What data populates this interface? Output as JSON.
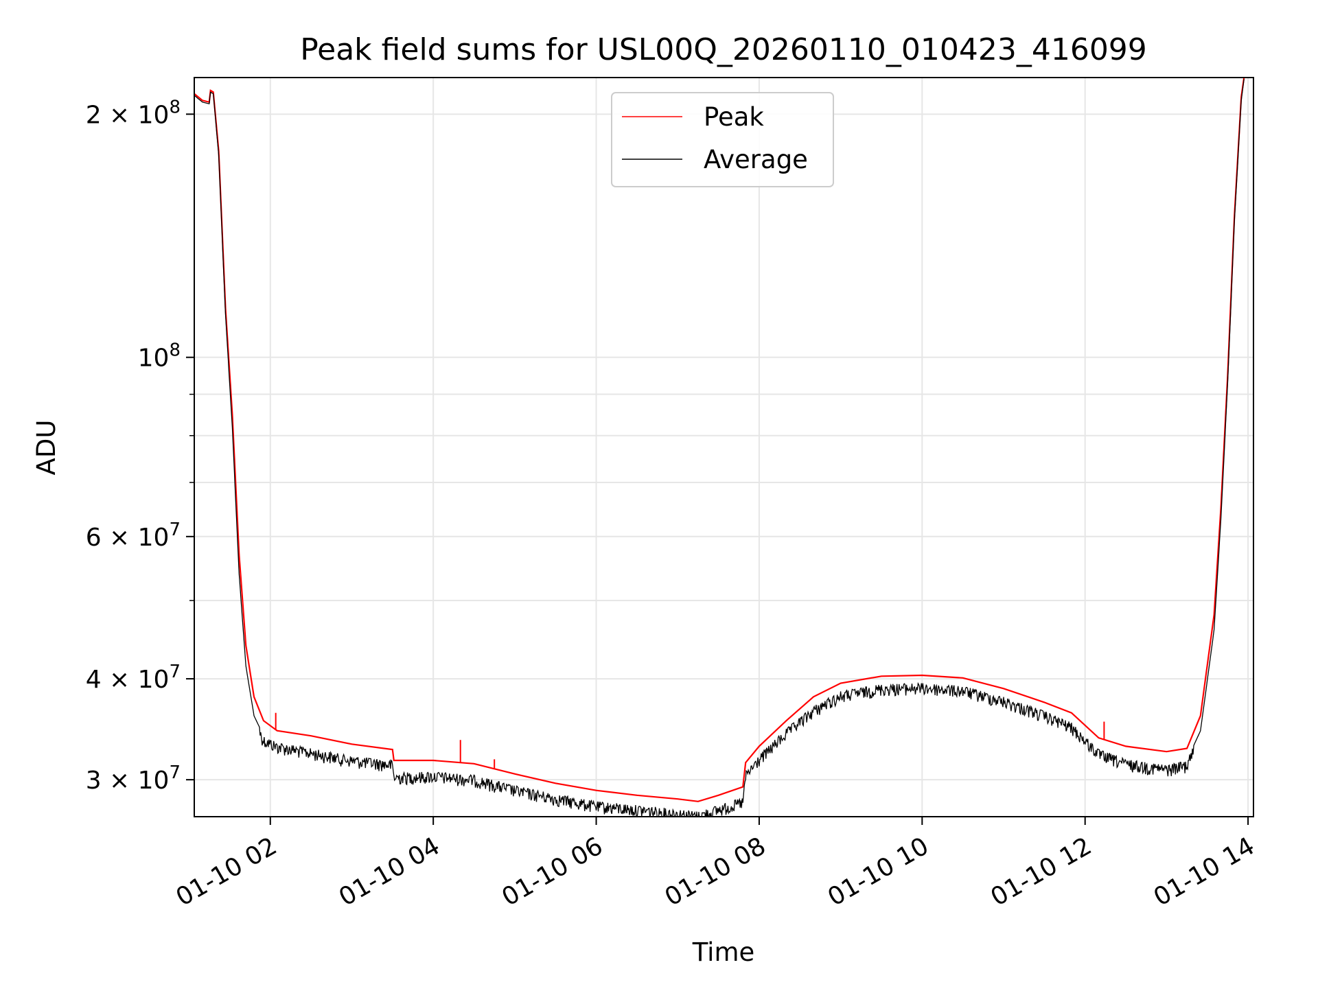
{
  "chart_data": {
    "type": "line",
    "title": "Peak field sums for USL00Q_20260110_010423_416099",
    "xlabel": "Time",
    "ylabel": "ADU",
    "xlim": [
      "2026-01-10 01:04",
      "2026-01-10 14:04"
    ],
    "ylim": [
      27000000,
      222000000
    ],
    "yscale": "log",
    "grid": true,
    "legend": {
      "placement": "top-center"
    },
    "x_ticks": [
      {
        "at": "2026-01-10 02:00",
        "label": "01-10 02"
      },
      {
        "at": "2026-01-10 04:00",
        "label": "01-10 04"
      },
      {
        "at": "2026-01-10 06:00",
        "label": "01-10 06"
      },
      {
        "at": "2026-01-10 08:00",
        "label": "01-10 08"
      },
      {
        "at": "2026-01-10 10:00",
        "label": "01-10 10"
      },
      {
        "at": "2026-01-10 12:00",
        "label": "01-10 12"
      },
      {
        "at": "2026-01-10 14:00",
        "label": "01-10 14"
      }
    ],
    "y_ticks": [
      {
        "value": 30000000,
        "mantissa": "3",
        "exp": "7"
      },
      {
        "value": 40000000,
        "mantissa": "4",
        "exp": "7"
      },
      {
        "value": 60000000,
        "mantissa": "6",
        "exp": "7"
      },
      {
        "value": 100000000,
        "mantissa": "",
        "exp": "8"
      },
      {
        "value": 200000000,
        "mantissa": "2",
        "exp": "8"
      }
    ],
    "y_minor_ticks": [
      50000000,
      70000000,
      80000000,
      90000000
    ],
    "series": [
      {
        "name": "Peak",
        "color": "#ff0000",
        "points": [
          [
            "2026-01-10 01:04",
            212000000
          ],
          [
            "2026-01-10 01:10",
            208000000
          ],
          [
            "2026-01-10 01:15",
            207000000
          ],
          [
            "2026-01-10 01:16",
            214000000
          ],
          [
            "2026-01-10 01:18",
            213000000
          ],
          [
            "2026-01-10 01:22",
            180000000
          ],
          [
            "2026-01-10 01:27",
            115000000
          ],
          [
            "2026-01-10 01:32",
            85000000
          ],
          [
            "2026-01-10 01:37",
            57000000
          ],
          [
            "2026-01-10 01:42",
            44000000
          ],
          [
            "2026-01-10 01:48",
            38000000
          ],
          [
            "2026-01-10 01:55",
            35500000
          ],
          [
            "2026-01-10 02:05",
            34500000
          ],
          [
            "2026-01-10 02:30",
            34000000
          ],
          [
            "2026-01-10 03:00",
            33200000
          ],
          [
            "2026-01-10 03:30",
            32700000
          ],
          [
            "2026-01-10 03:31",
            31700000
          ],
          [
            "2026-01-10 04:00",
            31700000
          ],
          [
            "2026-01-10 04:30",
            31400000
          ],
          [
            "2026-01-10 05:00",
            30500000
          ],
          [
            "2026-01-10 05:30",
            29700000
          ],
          [
            "2026-01-10 06:00",
            29100000
          ],
          [
            "2026-01-10 06:30",
            28700000
          ],
          [
            "2026-01-10 07:00",
            28400000
          ],
          [
            "2026-01-10 07:15",
            28200000
          ],
          [
            "2026-01-10 07:30",
            28700000
          ],
          [
            "2026-01-10 07:48",
            29400000
          ],
          [
            "2026-01-10 07:50",
            31500000
          ],
          [
            "2026-01-10 08:00",
            33000000
          ],
          [
            "2026-01-10 08:20",
            35500000
          ],
          [
            "2026-01-10 08:40",
            38000000
          ],
          [
            "2026-01-10 09:00",
            39500000
          ],
          [
            "2026-01-10 09:30",
            40300000
          ],
          [
            "2026-01-10 10:00",
            40400000
          ],
          [
            "2026-01-10 10:30",
            40100000
          ],
          [
            "2026-01-10 11:00",
            38900000
          ],
          [
            "2026-01-10 11:30",
            37400000
          ],
          [
            "2026-01-10 11:50",
            36300000
          ],
          [
            "2026-01-10 12:10",
            33800000
          ],
          [
            "2026-01-10 12:30",
            33000000
          ],
          [
            "2026-01-10 13:00",
            32500000
          ],
          [
            "2026-01-10 13:15",
            32800000
          ],
          [
            "2026-01-10 13:25",
            36000000
          ],
          [
            "2026-01-10 13:35",
            48000000
          ],
          [
            "2026-01-10 13:40",
            65000000
          ],
          [
            "2026-01-10 13:45",
            95000000
          ],
          [
            "2026-01-10 13:50",
            150000000
          ],
          [
            "2026-01-10 13:55",
            210000000
          ],
          [
            "2026-01-10 13:57",
            222000000
          ]
        ],
        "spikes": [
          [
            "2026-01-10 02:04",
            36300000
          ],
          [
            "2026-01-10 04:20",
            33600000
          ],
          [
            "2026-01-10 04:45",
            31800000
          ],
          [
            "2026-01-10 12:14",
            35400000
          ]
        ]
      },
      {
        "name": "Average",
        "color": "#000000",
        "points": [
          [
            "2026-01-10 01:04",
            211000000
          ],
          [
            "2026-01-10 01:10",
            207000000
          ],
          [
            "2026-01-10 01:15",
            206000000
          ],
          [
            "2026-01-10 01:16",
            213000000
          ],
          [
            "2026-01-10 01:18",
            212000000
          ],
          [
            "2026-01-10 01:22",
            178000000
          ],
          [
            "2026-01-10 01:27",
            113000000
          ],
          [
            "2026-01-10 01:32",
            82000000
          ],
          [
            "2026-01-10 01:37",
            54000000
          ],
          [
            "2026-01-10 01:42",
            41500000
          ],
          [
            "2026-01-10 01:48",
            36000000
          ],
          [
            "2026-01-10 01:55",
            34000000
          ],
          [
            "2026-01-10 02:05",
            33400000
          ],
          [
            "2026-01-10 02:30",
            32800000
          ],
          [
            "2026-01-10 03:00",
            32100000
          ],
          [
            "2026-01-10 03:30",
            31700000
          ],
          [
            "2026-01-10 03:31",
            30600000
          ],
          [
            "2026-01-10 04:00",
            30700000
          ],
          [
            "2026-01-10 04:30",
            30400000
          ],
          [
            "2026-01-10 05:00",
            29500000
          ],
          [
            "2026-01-10 05:30",
            28800000
          ],
          [
            "2026-01-10 06:00",
            28200000
          ],
          [
            "2026-01-10 06:30",
            27900000
          ],
          [
            "2026-01-10 07:00",
            27600000
          ],
          [
            "2026-01-10 07:15",
            27400000
          ],
          [
            "2026-01-10 07:30",
            27900000
          ],
          [
            "2026-01-10 07:48",
            28500000
          ],
          [
            "2026-01-10 07:50",
            30700000
          ],
          [
            "2026-01-10 08:00",
            32200000
          ],
          [
            "2026-01-10 08:20",
            34700000
          ],
          [
            "2026-01-10 08:40",
            37000000
          ],
          [
            "2026-01-10 09:00",
            38600000
          ],
          [
            "2026-01-10 09:30",
            39400000
          ],
          [
            "2026-01-10 10:00",
            39500000
          ],
          [
            "2026-01-10 10:30",
            39200000
          ],
          [
            "2026-01-10 11:00",
            38000000
          ],
          [
            "2026-01-10 11:30",
            36500000
          ],
          [
            "2026-01-10 11:50",
            35300000
          ],
          [
            "2026-01-10 12:10",
            32700000
          ],
          [
            "2026-01-10 12:30",
            31800000
          ],
          [
            "2026-01-10 13:00",
            31300000
          ],
          [
            "2026-01-10 13:15",
            31700000
          ],
          [
            "2026-01-10 13:25",
            34500000
          ],
          [
            "2026-01-10 13:35",
            46000000
          ],
          [
            "2026-01-10 13:40",
            63000000
          ],
          [
            "2026-01-10 13:45",
            93000000
          ],
          [
            "2026-01-10 13:50",
            148000000
          ],
          [
            "2026-01-10 13:55",
            208000000
          ],
          [
            "2026-01-10 13:57",
            221000000
          ]
        ],
        "noise_dip": 0.035
      }
    ]
  }
}
